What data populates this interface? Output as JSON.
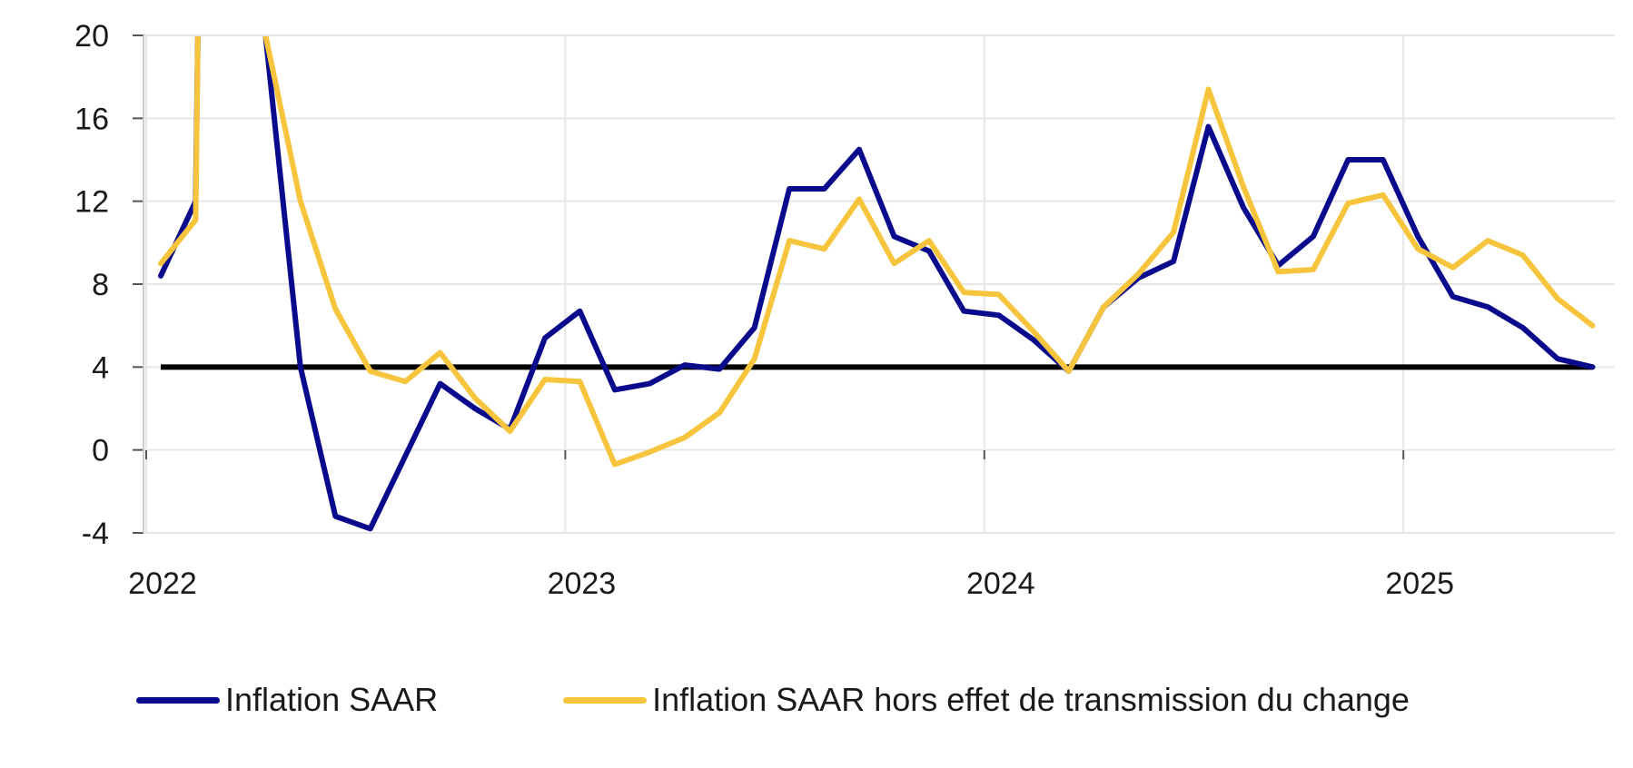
{
  "chart_data": {
    "type": "line",
    "x_unit": "month",
    "x": [
      "2022-01",
      "2022-02",
      "2022-03",
      "2022-04",
      "2022-05",
      "2022-06",
      "2022-07",
      "2022-08",
      "2022-09",
      "2022-10",
      "2022-11",
      "2022-12",
      "2023-01",
      "2023-02",
      "2023-03",
      "2023-04",
      "2023-05",
      "2023-06",
      "2023-07",
      "2023-08",
      "2023-09",
      "2023-10",
      "2023-11",
      "2023-12",
      "2024-01",
      "2024-02",
      "2024-03",
      "2024-04",
      "2024-05",
      "2024-06",
      "2024-07",
      "2024-08",
      "2024-09",
      "2024-10",
      "2024-11",
      "2024-12",
      "2025-01",
      "2025-02",
      "2025-03",
      "2025-04",
      "2025-05",
      "2025-06"
    ],
    "x_ticks": [
      "2022",
      "2023",
      "2024",
      "2025"
    ],
    "ylim": [
      -4,
      20
    ],
    "y_ticks": [
      -4,
      0,
      4,
      8,
      12,
      16,
      20
    ],
    "y_tick_labels": [
      "-4",
      "0",
      "4",
      "8",
      "12",
      "16",
      "20"
    ],
    "grid": true,
    "reference_line": {
      "y": 4,
      "color": "#000000"
    },
    "series": [
      {
        "name": "Inflation SAAR",
        "color": "#0a0a8c",
        "values": [
          8.4,
          12.0,
          null,
          20.0,
          4.0,
          -3.2,
          -3.8,
          -0.3,
          3.2,
          2.0,
          1.0,
          5.4,
          6.7,
          2.9,
          3.2,
          4.1,
          3.9,
          5.9,
          12.6,
          12.6,
          14.5,
          10.3,
          9.6,
          6.7,
          6.5,
          5.3,
          3.8,
          6.9,
          8.3,
          9.1,
          15.6,
          11.7,
          8.9,
          10.3,
          14.0,
          14.0,
          10.3,
          7.4,
          6.9,
          5.9,
          4.4,
          4.0
        ]
      },
      {
        "name": "Inflation SAAR hors effet de transmission du change",
        "color": "#f7c53d",
        "values": [
          9.0,
          11.1,
          null,
          20.0,
          12.0,
          6.8,
          3.8,
          3.3,
          4.7,
          2.5,
          0.9,
          3.4,
          3.3,
          -0.7,
          -0.1,
          0.6,
          1.8,
          4.4,
          10.1,
          9.7,
          12.1,
          9.0,
          10.1,
          7.6,
          7.5,
          5.7,
          3.8,
          6.9,
          8.5,
          10.5,
          17.4,
          12.7,
          8.6,
          8.7,
          11.9,
          12.3,
          9.7,
          8.8,
          10.1,
          9.4,
          7.3,
          6.0
        ]
      }
    ],
    "legend_placement": "bottom"
  },
  "legend": {
    "items": [
      {
        "label": "Inflation SAAR",
        "color": "#0a0a8c"
      },
      {
        "label": "Inflation SAAR hors effet de transmission du change",
        "color": "#f7c53d"
      }
    ]
  }
}
